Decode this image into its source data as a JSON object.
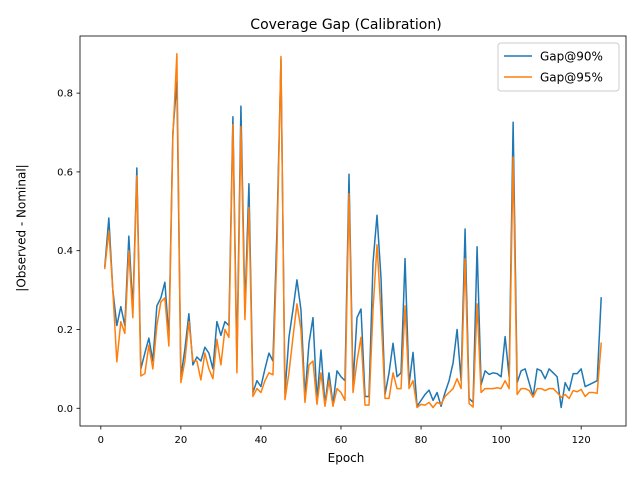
{
  "chart_data": {
    "type": "line",
    "title": "Coverage Gap (Calibration)",
    "xlabel": "Epoch",
    "ylabel": "|Observed - Nominal|",
    "xlim": [
      -5.2,
      131.2
    ],
    "ylim": [
      -0.045,
      0.945
    ],
    "xticks": [
      0,
      20,
      40,
      60,
      80,
      100,
      120
    ],
    "yticks": [
      0.0,
      0.2,
      0.4,
      0.6,
      0.8
    ],
    "xtick_labels": [
      "0",
      "20",
      "40",
      "60",
      "80",
      "100",
      "120"
    ],
    "ytick_labels": [
      "0.0",
      "0.2",
      "0.4",
      "0.6",
      "0.8"
    ],
    "grid": false,
    "legend_position": "top-right",
    "x": [
      1,
      2,
      3,
      4,
      5,
      6,
      7,
      8,
      9,
      10,
      11,
      12,
      13,
      14,
      15,
      16,
      17,
      18,
      19,
      20,
      21,
      22,
      23,
      24,
      25,
      26,
      27,
      28,
      29,
      30,
      31,
      32,
      33,
      34,
      35,
      36,
      37,
      38,
      39,
      40,
      41,
      42,
      43,
      44,
      45,
      46,
      47,
      48,
      49,
      50,
      51,
      52,
      53,
      54,
      55,
      56,
      57,
      58,
      59,
      60,
      61,
      62,
      63,
      64,
      65,
      66,
      67,
      68,
      69,
      70,
      71,
      72,
      73,
      74,
      75,
      76,
      77,
      78,
      79,
      80,
      81,
      82,
      83,
      84,
      85,
      86,
      87,
      88,
      89,
      90,
      91,
      92,
      93,
      94,
      95,
      96,
      97,
      98,
      99,
      100,
      101,
      102,
      103,
      104,
      105,
      106,
      107,
      108,
      109,
      110,
      111,
      112,
      113,
      114,
      115,
      116,
      117,
      118,
      119,
      120,
      121,
      122,
      123,
      124,
      125
    ],
    "series": [
      {
        "name": "Gap@90%",
        "color": "#1f77b4",
        "values": [
          0.36,
          0.483,
          0.3,
          0.21,
          0.258,
          0.21,
          0.437,
          0.25,
          0.61,
          0.1,
          0.14,
          0.178,
          0.12,
          0.26,
          0.28,
          0.32,
          0.18,
          0.7,
          0.83,
          0.08,
          0.15,
          0.24,
          0.11,
          0.13,
          0.12,
          0.155,
          0.14,
          0.1,
          0.22,
          0.185,
          0.22,
          0.21,
          0.74,
          0.12,
          0.767,
          0.25,
          0.57,
          0.04,
          0.07,
          0.055,
          0.1,
          0.14,
          0.12,
          0.45,
          0.885,
          0.04,
          0.18,
          0.25,
          0.326,
          0.25,
          0.03,
          0.165,
          0.23,
          0.02,
          0.148,
          0.01,
          0.09,
          0.01,
          0.095,
          0.08,
          0.07,
          0.594,
          0.06,
          0.23,
          0.252,
          0.03,
          0.03,
          0.37,
          0.49,
          0.33,
          0.035,
          0.09,
          0.165,
          0.08,
          0.09,
          0.38,
          0.06,
          0.142,
          0.005,
          0.02,
          0.035,
          0.046,
          0.02,
          0.04,
          0.005,
          0.04,
          0.07,
          0.115,
          0.2,
          0.07,
          0.455,
          0.025,
          0.015,
          0.41,
          0.06,
          0.095,
          0.086,
          0.09,
          0.088,
          0.08,
          0.182,
          0.08,
          0.726,
          0.065,
          0.095,
          0.1,
          0.065,
          0.03,
          0.1,
          0.095,
          0.075,
          0.1,
          0.09,
          0.08,
          0.002,
          0.065,
          0.045,
          0.088,
          0.088,
          0.1,
          0.055,
          0.06,
          0.065,
          0.07,
          0.28
        ]
      },
      {
        "name": "Gap@95%",
        "color": "#ff7f0e",
        "values": [
          0.355,
          0.45,
          0.3,
          0.118,
          0.22,
          0.19,
          0.4,
          0.23,
          0.59,
          0.082,
          0.088,
          0.16,
          0.1,
          0.21,
          0.27,
          0.28,
          0.158,
          0.69,
          0.9,
          0.065,
          0.12,
          0.22,
          0.12,
          0.12,
          0.072,
          0.14,
          0.1,
          0.075,
          0.175,
          0.11,
          0.2,
          0.18,
          0.72,
          0.09,
          0.715,
          0.225,
          0.51,
          0.03,
          0.05,
          0.04,
          0.07,
          0.09,
          0.085,
          0.4,
          0.893,
          0.022,
          0.09,
          0.18,
          0.265,
          0.2,
          0.015,
          0.11,
          0.12,
          0.01,
          0.09,
          0.005,
          0.07,
          0.005,
          0.05,
          0.04,
          0.02,
          0.545,
          0.04,
          0.12,
          0.18,
          0.008,
          0.008,
          0.25,
          0.415,
          0.24,
          0.025,
          0.025,
          0.09,
          0.05,
          0.05,
          0.26,
          0.05,
          0.07,
          0.002,
          0.01,
          0.008,
          0.015,
          0.002,
          0.015,
          0.01,
          0.03,
          0.04,
          0.05,
          0.075,
          0.05,
          0.38,
          0.012,
          0.003,
          0.265,
          0.04,
          0.05,
          0.05,
          0.05,
          0.052,
          0.05,
          0.07,
          0.05,
          0.638,
          0.035,
          0.05,
          0.05,
          0.045,
          0.028,
          0.05,
          0.05,
          0.045,
          0.05,
          0.05,
          0.04,
          0.028,
          0.035,
          0.025,
          0.045,
          0.042,
          0.048,
          0.03,
          0.04,
          0.04,
          0.038,
          0.165
        ]
      }
    ]
  }
}
